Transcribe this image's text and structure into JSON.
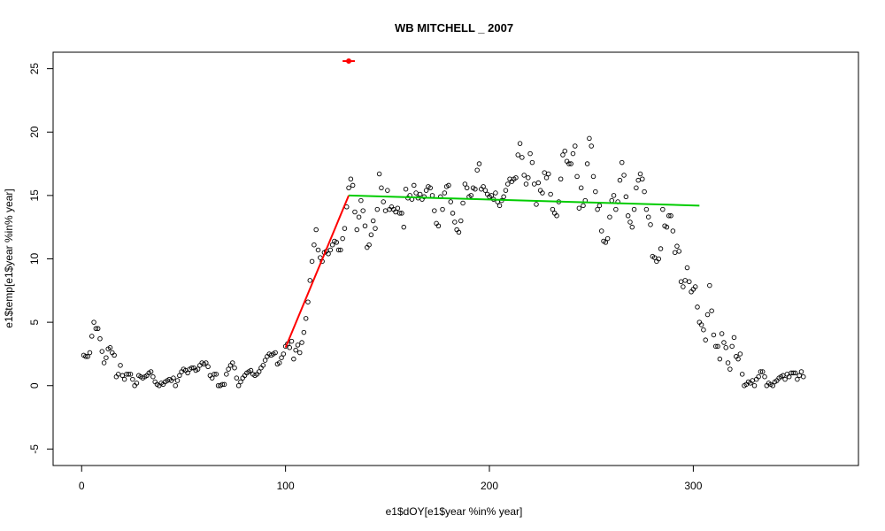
{
  "chart_data": {
    "type": "scatter",
    "title": "WB MITCHELL _ 2007",
    "xlabel": "e1$dOY[e1$year %in% year]",
    "ylabel": "e1$temp[e1$year %in% year]",
    "xlim": [
      -14,
      381
    ],
    "ylim": [
      -6.3,
      26.3
    ],
    "xticks": [
      "0",
      "100",
      "200",
      "300"
    ],
    "yticks": [
      "-5",
      "0",
      "5",
      "10",
      "15",
      "20",
      "25"
    ],
    "grid": false,
    "point_color": "#000000",
    "points": [
      [
        1,
        2.4
      ],
      [
        2,
        2.3
      ],
      [
        3,
        2.3
      ],
      [
        4,
        2.6
      ],
      [
        5,
        3.9
      ],
      [
        6,
        5.0
      ],
      [
        7,
        4.5
      ],
      [
        8,
        4.5
      ],
      [
        9,
        3.7
      ],
      [
        10,
        2.7
      ],
      [
        11,
        1.8
      ],
      [
        12,
        2.2
      ],
      [
        13,
        2.9
      ],
      [
        14,
        3.0
      ],
      [
        15,
        2.6
      ],
      [
        16,
        2.4
      ],
      [
        17,
        0.7
      ],
      [
        18,
        0.9
      ],
      [
        19,
        1.6
      ],
      [
        20,
        0.8
      ],
      [
        21,
        0.5
      ],
      [
        22,
        0.9
      ],
      [
        23,
        0.9
      ],
      [
        24,
        0.9
      ],
      [
        25,
        0.5
      ],
      [
        26,
        0.0
      ],
      [
        27,
        0.2
      ],
      [
        28,
        0.8
      ],
      [
        29,
        0.7
      ],
      [
        30,
        0.6
      ],
      [
        31,
        0.7
      ],
      [
        32,
        0.8
      ],
      [
        33,
        1.0
      ],
      [
        34,
        1.1
      ],
      [
        35,
        0.7
      ],
      [
        36,
        0.3
      ],
      [
        37,
        0.1
      ],
      [
        38,
        0.0
      ],
      [
        39,
        0.2
      ],
      [
        40,
        0.1
      ],
      [
        41,
        0.3
      ],
      [
        42,
        0.4
      ],
      [
        43,
        0.5
      ],
      [
        44,
        0.4
      ],
      [
        45,
        0.6
      ],
      [
        46,
        0.0
      ],
      [
        47,
        0.4
      ],
      [
        48,
        0.8
      ],
      [
        49,
        1.1
      ],
      [
        50,
        1.3
      ],
      [
        51,
        1.2
      ],
      [
        52,
        1.0
      ],
      [
        53,
        1.3
      ],
      [
        54,
        1.4
      ],
      [
        55,
        1.4
      ],
      [
        56,
        1.2
      ],
      [
        57,
        1.3
      ],
      [
        58,
        1.6
      ],
      [
        59,
        1.8
      ],
      [
        60,
        1.7
      ],
      [
        61,
        1.8
      ],
      [
        62,
        1.5
      ],
      [
        63,
        0.8
      ],
      [
        64,
        0.6
      ],
      [
        65,
        0.9
      ],
      [
        66,
        0.9
      ],
      [
        67,
        0.0
      ],
      [
        68,
        0.0
      ],
      [
        69,
        0.1
      ],
      [
        70,
        0.1
      ],
      [
        71,
        0.9
      ],
      [
        72,
        1.3
      ],
      [
        73,
        1.6
      ],
      [
        74,
        1.8
      ],
      [
        75,
        1.4
      ],
      [
        76,
        0.6
      ],
      [
        77,
        0.0
      ],
      [
        78,
        0.3
      ],
      [
        79,
        0.6
      ],
      [
        80,
        0.8
      ],
      [
        81,
        1.0
      ],
      [
        82,
        1.1
      ],
      [
        83,
        1.2
      ],
      [
        84,
        0.9
      ],
      [
        85,
        0.8
      ],
      [
        86,
        0.9
      ],
      [
        87,
        1.1
      ],
      [
        88,
        1.4
      ],
      [
        89,
        1.6
      ],
      [
        90,
        2.0
      ],
      [
        91,
        2.3
      ],
      [
        92,
        2.5
      ],
      [
        93,
        2.4
      ],
      [
        94,
        2.5
      ],
      [
        95,
        2.6
      ],
      [
        96,
        1.7
      ],
      [
        97,
        1.8
      ],
      [
        98,
        2.2
      ],
      [
        99,
        2.5
      ],
      [
        100,
        3.1
      ],
      [
        101,
        3.3
      ],
      [
        102,
        3.0
      ],
      [
        103,
        3.5
      ],
      [
        104,
        2.1
      ],
      [
        105,
        2.8
      ],
      [
        106,
        3.2
      ],
      [
        107,
        2.6
      ],
      [
        108,
        3.4
      ],
      [
        109,
        4.2
      ],
      [
        110,
        5.3
      ],
      [
        111,
        6.6
      ],
      [
        112,
        8.3
      ],
      [
        113,
        9.8
      ],
      [
        114,
        11.1
      ],
      [
        115,
        12.3
      ],
      [
        116,
        10.7
      ],
      [
        117,
        10.1
      ],
      [
        118,
        9.8
      ],
      [
        119,
        10.5
      ],
      [
        120,
        10.6
      ],
      [
        121,
        10.4
      ],
      [
        122,
        10.7
      ],
      [
        123,
        11.1
      ],
      [
        124,
        11.4
      ],
      [
        125,
        11.3
      ],
      [
        126,
        10.7
      ],
      [
        127,
        10.7
      ],
      [
        128,
        11.6
      ],
      [
        129,
        12.4
      ],
      [
        130,
        14.1
      ],
      [
        131,
        15.6
      ],
      [
        132,
        16.3
      ],
      [
        133,
        15.8
      ],
      [
        134,
        13.7
      ],
      [
        135,
        12.3
      ],
      [
        136,
        13.3
      ],
      [
        137,
        14.6
      ],
      [
        138,
        13.8
      ],
      [
        139,
        12.6
      ],
      [
        140,
        10.9
      ],
      [
        141,
        11.1
      ],
      [
        142,
        11.9
      ],
      [
        143,
        13.0
      ],
      [
        144,
        12.4
      ],
      [
        145,
        13.9
      ],
      [
        146,
        16.7
      ],
      [
        147,
        15.6
      ],
      [
        148,
        14.5
      ],
      [
        149,
        13.8
      ],
      [
        150,
        15.4
      ],
      [
        151,
        13.9
      ],
      [
        152,
        14.1
      ],
      [
        153,
        13.9
      ],
      [
        154,
        13.7
      ],
      [
        155,
        14.0
      ],
      [
        156,
        13.6
      ],
      [
        157,
        13.6
      ],
      [
        158,
        12.5
      ],
      [
        159,
        15.5
      ],
      [
        160,
        14.8
      ],
      [
        161,
        15.0
      ],
      [
        162,
        14.7
      ],
      [
        163,
        15.8
      ],
      [
        164,
        15.2
      ],
      [
        165,
        14.8
      ],
      [
        166,
        15.1
      ],
      [
        167,
        14.7
      ],
      [
        168,
        14.9
      ],
      [
        169,
        15.4
      ],
      [
        170,
        15.7
      ],
      [
        171,
        15.6
      ],
      [
        172,
        15.0
      ],
      [
        173,
        13.8
      ],
      [
        174,
        12.8
      ],
      [
        175,
        12.6
      ],
      [
        176,
        14.9
      ],
      [
        177,
        13.9
      ],
      [
        178,
        15.2
      ],
      [
        179,
        15.7
      ],
      [
        180,
        15.8
      ],
      [
        181,
        14.5
      ],
      [
        182,
        13.6
      ],
      [
        183,
        12.9
      ],
      [
        184,
        12.3
      ],
      [
        185,
        12.1
      ],
      [
        186,
        13.0
      ],
      [
        187,
        14.4
      ],
      [
        188,
        15.9
      ],
      [
        189,
        15.6
      ],
      [
        190,
        14.9
      ],
      [
        191,
        15.0
      ],
      [
        192,
        15.6
      ],
      [
        193,
        15.5
      ],
      [
        194,
        17.0
      ],
      [
        195,
        17.5
      ],
      [
        196,
        15.5
      ],
      [
        197,
        15.7
      ],
      [
        198,
        15.4
      ],
      [
        199,
        15.1
      ],
      [
        200,
        14.9
      ],
      [
        201,
        15.0
      ],
      [
        202,
        14.7
      ],
      [
        203,
        15.2
      ],
      [
        204,
        14.5
      ],
      [
        205,
        14.2
      ],
      [
        206,
        14.6
      ],
      [
        207,
        14.9
      ],
      [
        208,
        15.4
      ],
      [
        209,
        15.9
      ],
      [
        210,
        16.3
      ],
      [
        211,
        16.1
      ],
      [
        212,
        16.3
      ],
      [
        213,
        16.4
      ],
      [
        214,
        18.2
      ],
      [
        215,
        19.1
      ],
      [
        216,
        18.0
      ],
      [
        217,
        16.6
      ],
      [
        218,
        15.9
      ],
      [
        219,
        16.4
      ],
      [
        220,
        18.3
      ],
      [
        221,
        17.6
      ],
      [
        222,
        15.9
      ],
      [
        223,
        14.3
      ],
      [
        224,
        16.0
      ],
      [
        225,
        15.4
      ],
      [
        226,
        15.2
      ],
      [
        227,
        16.8
      ],
      [
        228,
        16.4
      ],
      [
        229,
        16.7
      ],
      [
        230,
        15.1
      ],
      [
        231,
        13.9
      ],
      [
        232,
        13.6
      ],
      [
        233,
        13.4
      ],
      [
        234,
        14.5
      ],
      [
        235,
        16.3
      ],
      [
        236,
        18.2
      ],
      [
        237,
        18.5
      ],
      [
        238,
        17.7
      ],
      [
        239,
        17.5
      ],
      [
        240,
        17.5
      ],
      [
        241,
        18.3
      ],
      [
        242,
        18.9
      ],
      [
        243,
        16.5
      ],
      [
        244,
        14.0
      ],
      [
        245,
        15.6
      ],
      [
        246,
        14.2
      ],
      [
        247,
        14.6
      ],
      [
        248,
        17.5
      ],
      [
        249,
        19.5
      ],
      [
        250,
        18.9
      ],
      [
        251,
        16.5
      ],
      [
        252,
        15.3
      ],
      [
        253,
        13.9
      ],
      [
        254,
        14.2
      ],
      [
        255,
        12.2
      ],
      [
        256,
        11.4
      ],
      [
        257,
        11.3
      ],
      [
        258,
        11.6
      ],
      [
        259,
        13.3
      ],
      [
        260,
        14.6
      ],
      [
        261,
        15.0
      ],
      [
        262,
        13.9
      ],
      [
        263,
        14.5
      ],
      [
        264,
        16.2
      ],
      [
        265,
        17.6
      ],
      [
        266,
        16.6
      ],
      [
        267,
        14.9
      ],
      [
        268,
        13.4
      ],
      [
        269,
        12.9
      ],
      [
        270,
        12.5
      ],
      [
        271,
        13.9
      ],
      [
        272,
        15.6
      ],
      [
        273,
        16.2
      ],
      [
        274,
        16.7
      ],
      [
        275,
        16.3
      ],
      [
        276,
        15.3
      ],
      [
        277,
        13.9
      ],
      [
        278,
        13.3
      ],
      [
        279,
        12.7
      ],
      [
        280,
        10.2
      ],
      [
        281,
        10.1
      ],
      [
        282,
        9.8
      ],
      [
        283,
        10.0
      ],
      [
        284,
        10.8
      ],
      [
        285,
        13.9
      ],
      [
        286,
        12.6
      ],
      [
        287,
        12.5
      ],
      [
        288,
        13.4
      ],
      [
        289,
        13.4
      ],
      [
        290,
        12.2
      ],
      [
        291,
        10.5
      ],
      [
        292,
        11.0
      ],
      [
        293,
        10.6
      ],
      [
        294,
        8.2
      ],
      [
        295,
        7.8
      ],
      [
        296,
        8.3
      ],
      [
        297,
        9.3
      ],
      [
        298,
        8.2
      ],
      [
        299,
        7.4
      ],
      [
        300,
        7.6
      ],
      [
        301,
        7.8
      ],
      [
        302,
        6.2
      ],
      [
        303,
        5.0
      ],
      [
        304,
        4.8
      ],
      [
        305,
        4.4
      ],
      [
        306,
        3.6
      ],
      [
        307,
        5.6
      ],
      [
        308,
        7.9
      ],
      [
        309,
        5.9
      ],
      [
        310,
        4.0
      ],
      [
        311,
        3.1
      ],
      [
        312,
        3.1
      ],
      [
        313,
        2.1
      ],
      [
        314,
        4.1
      ],
      [
        315,
        3.4
      ],
      [
        316,
        3.0
      ],
      [
        317,
        1.8
      ],
      [
        318,
        1.3
      ],
      [
        319,
        3.1
      ],
      [
        320,
        3.8
      ],
      [
        321,
        2.3
      ],
      [
        322,
        2.1
      ],
      [
        323,
        2.5
      ],
      [
        324,
        0.9
      ],
      [
        325,
        0.0
      ],
      [
        326,
        0.1
      ],
      [
        327,
        0.3
      ],
      [
        328,
        0.2
      ],
      [
        329,
        0.4
      ],
      [
        330,
        0.0
      ],
      [
        331,
        0.5
      ],
      [
        332,
        0.7
      ],
      [
        333,
        1.1
      ],
      [
        334,
        1.1
      ],
      [
        335,
        0.7
      ],
      [
        336,
        0.0
      ],
      [
        337,
        0.2
      ],
      [
        338,
        0.1
      ],
      [
        339,
        0.0
      ],
      [
        340,
        0.3
      ],
      [
        341,
        0.4
      ],
      [
        342,
        0.6
      ],
      [
        343,
        0.7
      ],
      [
        344,
        0.8
      ],
      [
        345,
        0.5
      ],
      [
        346,
        0.9
      ],
      [
        347,
        0.7
      ],
      [
        348,
        1.0
      ],
      [
        349,
        1.0
      ],
      [
        350,
        1.0
      ],
      [
        351,
        0.5
      ],
      [
        352,
        0.8
      ],
      [
        353,
        1.1
      ],
      [
        354,
        0.7
      ]
    ],
    "lines": [
      {
        "color": "#ff0000",
        "x": [
          100,
          131
        ],
        "y": [
          3.0,
          15.0
        ]
      },
      {
        "color": "#00cc00",
        "x": [
          131,
          303
        ],
        "y": [
          15.0,
          14.2
        ]
      }
    ],
    "marker": {
      "color": "#ff0000",
      "x": 131,
      "y": 25.6,
      "xerr": [
        128,
        134
      ]
    }
  }
}
